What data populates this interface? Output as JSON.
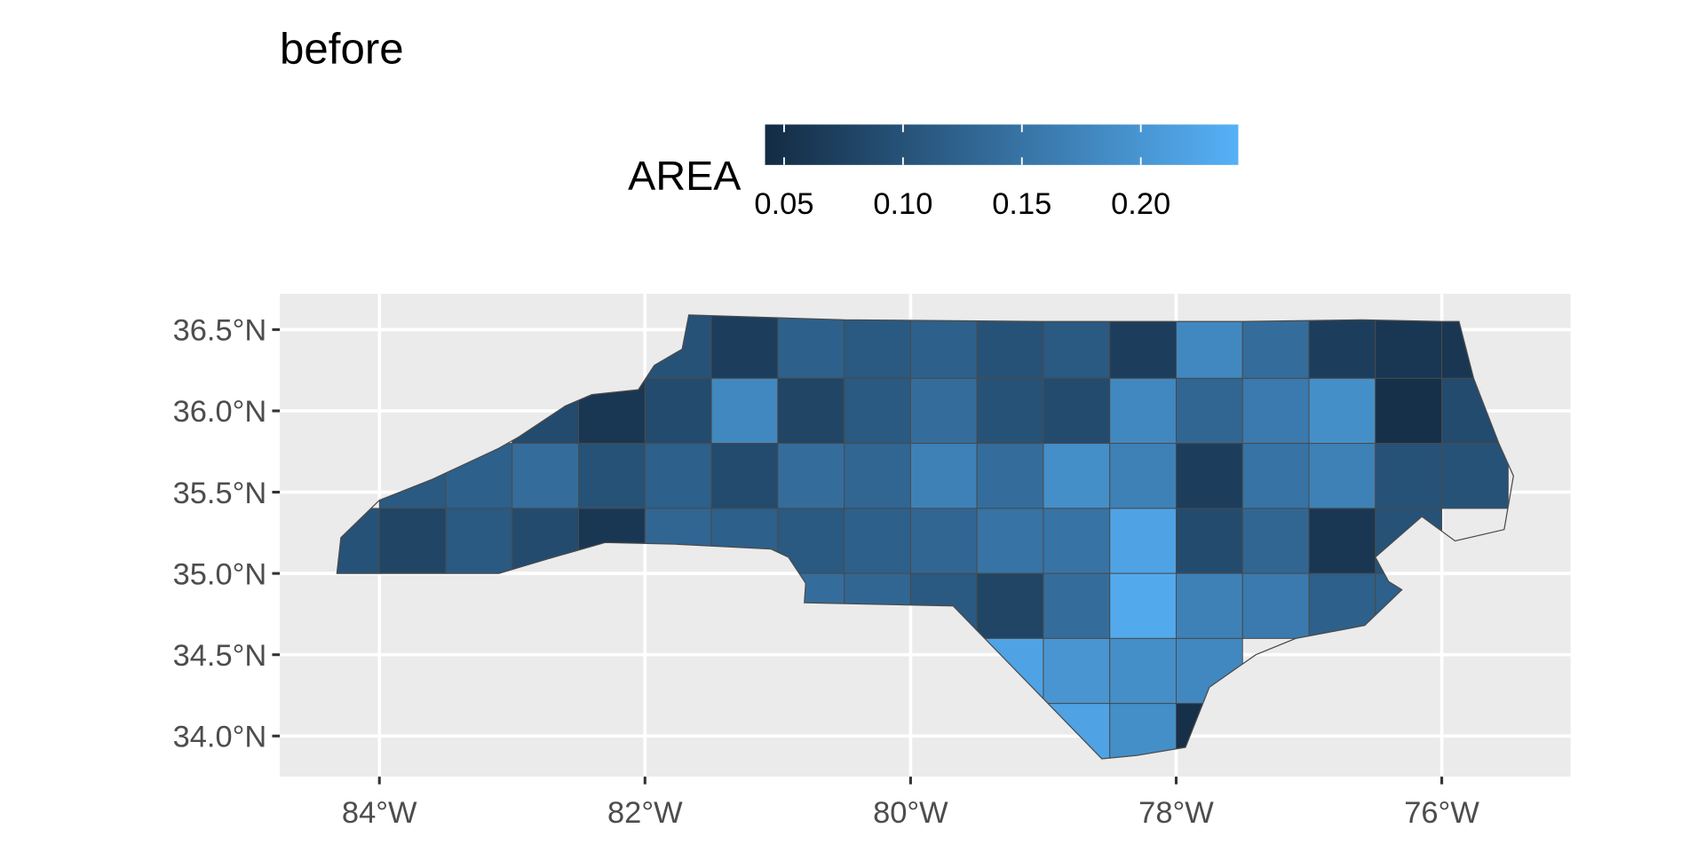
{
  "chart_data": {
    "type": "choropleth",
    "title": "before",
    "legend_title": "AREA",
    "colors": [
      "#132B43",
      "#56B1F7"
    ],
    "colorlim": [
      0.042,
      0.241
    ],
    "colorticks": [
      0.05,
      {
        "value": 0.1,
        "label": "0.10"
      },
      0.15,
      {
        "value": 0.2,
        "label": "0.20"
      }
    ],
    "xlim": [
      -84.75,
      -75.03
    ],
    "ylim": [
      33.75,
      36.72
    ],
    "xticks": [
      {
        "value": -84,
        "label": "84°W"
      },
      {
        "value": -82,
        "label": "82°W"
      },
      {
        "value": -80,
        "label": "80°W"
      },
      {
        "value": -78,
        "label": "78°W"
      },
      {
        "value": -76,
        "label": "76°W"
      }
    ],
    "yticks": [
      {
        "value": 34,
        "label": "34.0°N"
      },
      {
        "value": 34.5,
        "label": "34.5°N"
      },
      {
        "value": 35,
        "label": "35.0°N"
      },
      {
        "value": 35.5,
        "label": "35.5°N"
      },
      {
        "value": 36,
        "label": "36.0°N"
      },
      {
        "value": 36.5,
        "label": "36.5°N"
      }
    ],
    "grid": true,
    "values": [
      0.1,
      0.07,
      0.12,
      0.11,
      0.12,
      0.1,
      0.11,
      0.07,
      0.18,
      0.14,
      0.07,
      0.06,
      0.06,
      0.09,
      0.06,
      0.09,
      0.18,
      0.08,
      0.11,
      0.14,
      0.1,
      0.09,
      0.18,
      0.13,
      0.16,
      0.19,
      0.05,
      0.09,
      0.11,
      0.12,
      0.14,
      0.1,
      0.12,
      0.09,
      0.14,
      0.13,
      0.17,
      0.14,
      0.19,
      0.17,
      0.07,
      0.15,
      0.17,
      0.1,
      0.1,
      0.1,
      0.08,
      0.11,
      0.09,
      0.06,
      0.13,
      0.12,
      0.11,
      0.12,
      0.13,
      0.15,
      0.15,
      0.22,
      0.09,
      0.13,
      0.06,
      0.1,
      0.14,
      0.13,
      0.11,
      0.08,
      0.14,
      0.23,
      0.17,
      0.16,
      0.12,
      0.12,
      0.22,
      0.2,
      0.19,
      0.18,
      0.22,
      0.19,
      0.05
    ]
  }
}
